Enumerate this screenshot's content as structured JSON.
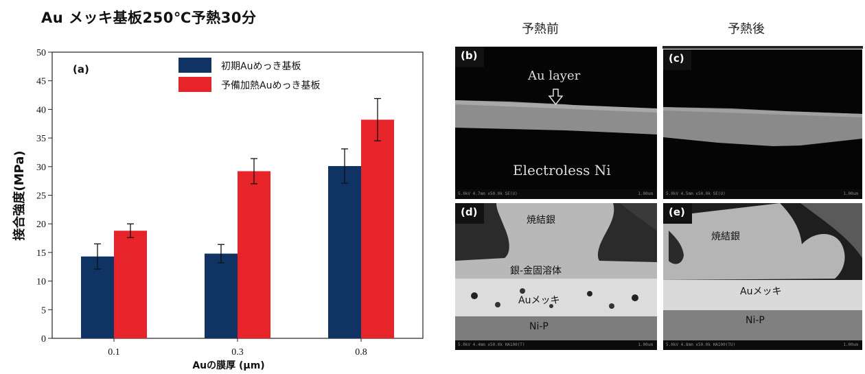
{
  "page_title": "Au メッキ基板250℃予熱30分",
  "chart_data": {
    "type": "bar",
    "panel_label": "(a)",
    "categories": [
      "0.1",
      "0.3",
      "0.8"
    ],
    "series": [
      {
        "name": "初期Auめっき基板",
        "color": "#0f3362",
        "values": [
          14.3,
          14.8,
          30.1
        ],
        "errors": [
          2.2,
          1.6,
          3.0
        ]
      },
      {
        "name": "予備加熱Auめっき基板",
        "color": "#e8242b",
        "values": [
          18.8,
          29.2,
          38.2
        ],
        "errors": [
          1.2,
          2.2,
          3.7
        ]
      }
    ],
    "xlabel": "Auの膜厚 (μm)",
    "ylabel": "接合強度(MPa)",
    "ylim": [
      0,
      50
    ],
    "yticks": [
      0,
      5,
      10,
      15,
      20,
      25,
      30,
      35,
      40,
      45,
      50
    ],
    "legend_position": "top-center"
  },
  "columns": {
    "before": "予熱前",
    "after": "予熱後"
  },
  "sem_panels": {
    "b": {
      "letter": "(b)",
      "label_top": "Au layer",
      "label_bottom": "Electroless Ni",
      "footer_left": "5.0kV 4.7mm x50.0k SE(U)",
      "footer_right": "1.00um"
    },
    "c": {
      "letter": "(c)",
      "footer_left": "5.0kV 4.5mm x50.0k SE(U)",
      "footer_right": "1.00um"
    },
    "d": {
      "letter": "(d)",
      "label_sinter": "焼結銀",
      "label_solid": "銀-金固溶体",
      "label_au": "Auメッキ",
      "label_nip": "Ni-P",
      "footer_left": "5.0kV 4.4mm x50.0k HA100(T)",
      "footer_right": "1.00um"
    },
    "e": {
      "letter": "(e)",
      "label_sinter": "焼結銀",
      "label_au": "Auメッキ",
      "label_nip": "Ni-P",
      "footer_left": "5.0kV 4.8mm x50.0k HA100(TU)",
      "footer_right": "1.00um"
    }
  }
}
